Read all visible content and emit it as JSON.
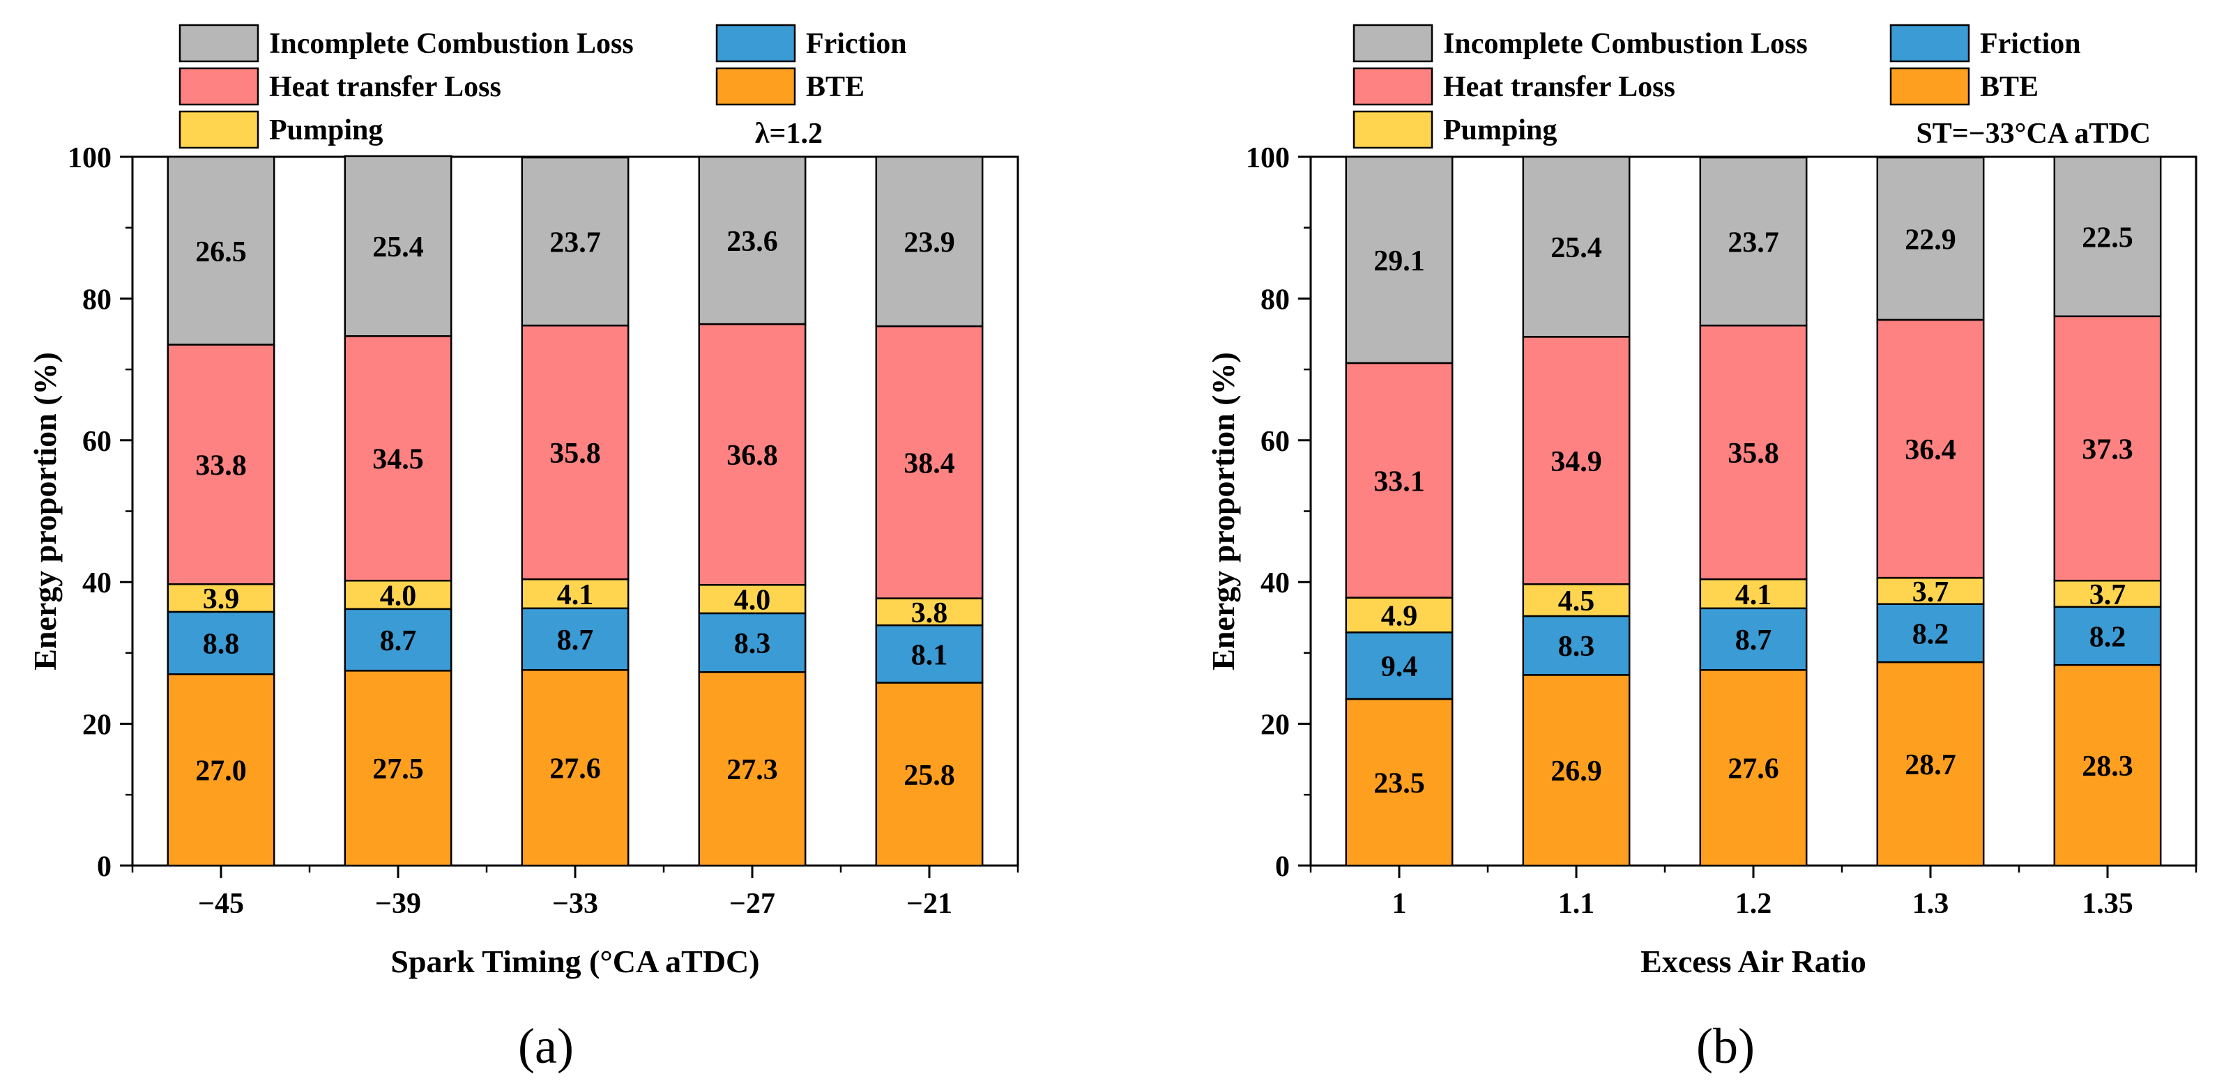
{
  "chart_data": [
    {
      "type": "bar",
      "stacked": true,
      "panel_label": "(a)",
      "annotation": "λ=1.2",
      "xlabel": "Spark Timing (°CA aTDC)",
      "ylabel": "Energy proportion (%)",
      "ylim": [
        0,
        100
      ],
      "yticks": [
        0,
        20,
        40,
        60,
        80,
        100
      ],
      "categories": [
        "−45",
        "−39",
        "−33",
        "−27",
        "−21"
      ],
      "series": [
        {
          "name": "BTE",
          "color": "#FF9F1F",
          "values": [
            27.0,
            27.5,
            27.6,
            27.3,
            25.8
          ],
          "labels": [
            "27.0",
            "27.5",
            "27.6",
            "27.3",
            "25.8"
          ]
        },
        {
          "name": "Friction",
          "color": "#3A9BD5",
          "values": [
            8.8,
            8.7,
            8.7,
            8.3,
            8.1
          ],
          "labels": [
            "8.8",
            "8.7",
            "8.7",
            "8.3",
            "8.1"
          ]
        },
        {
          "name": "Pumping",
          "color": "#FFD54F",
          "values": [
            3.9,
            4.0,
            4.1,
            4.0,
            3.8
          ],
          "labels": [
            "3.9",
            "4.0",
            "4.1",
            "4.0",
            "3.8"
          ]
        },
        {
          "name": "Heat transfer Loss",
          "color": "#FF8282",
          "values": [
            33.8,
            34.5,
            35.8,
            36.8,
            38.4
          ],
          "labels": [
            "33.8",
            "34.5",
            "35.8",
            "36.8",
            "38.4"
          ]
        },
        {
          "name": "Incomplete Combustion Loss",
          "color": "#B7B7B7",
          "values": [
            26.5,
            25.4,
            23.7,
            23.6,
            23.9
          ],
          "labels": [
            "26.5",
            "25.4",
            "23.7",
            "23.6",
            "23.9"
          ]
        }
      ]
    },
    {
      "type": "bar",
      "stacked": true,
      "panel_label": "(b)",
      "annotation": "ST=−33°CA aTDC",
      "xlabel": "Excess Air Ratio",
      "ylabel": "Energy proportion (%)",
      "ylim": [
        0,
        100
      ],
      "yticks": [
        0,
        20,
        40,
        60,
        80,
        100
      ],
      "categories": [
        "1",
        "1.1",
        "1.2",
        "1.3",
        "1.35"
      ],
      "series": [
        {
          "name": "BTE",
          "color": "#FF9F1F",
          "values": [
            23.5,
            26.9,
            27.6,
            28.7,
            28.3
          ],
          "labels": [
            "23.5",
            "26.9",
            "27.6",
            "28.7",
            "28.3"
          ]
        },
        {
          "name": "Friction",
          "color": "#3A9BD5",
          "values": [
            9.4,
            8.3,
            8.7,
            8.2,
            8.2
          ],
          "labels": [
            "9.4",
            "8.3",
            "8.7",
            "8.2",
            "8.2"
          ]
        },
        {
          "name": "Pumping",
          "color": "#FFD54F",
          "values": [
            4.9,
            4.5,
            4.1,
            3.7,
            3.7
          ],
          "labels": [
            "4.9",
            "4.5",
            "4.1",
            "3.7",
            "3.7"
          ]
        },
        {
          "name": "Heat transfer Loss",
          "color": "#FF8282",
          "values": [
            33.1,
            34.9,
            35.8,
            36.4,
            37.3
          ],
          "labels": [
            "33.1",
            "34.9",
            "35.8",
            "36.4",
            "37.3"
          ]
        },
        {
          "name": "Incomplete Combustion Loss",
          "color": "#B7B7B7",
          "values": [
            29.1,
            25.4,
            23.7,
            22.9,
            22.5
          ],
          "labels": [
            "29.1",
            "25.4",
            "23.7",
            "22.9",
            "22.5"
          ]
        }
      ]
    }
  ]
}
